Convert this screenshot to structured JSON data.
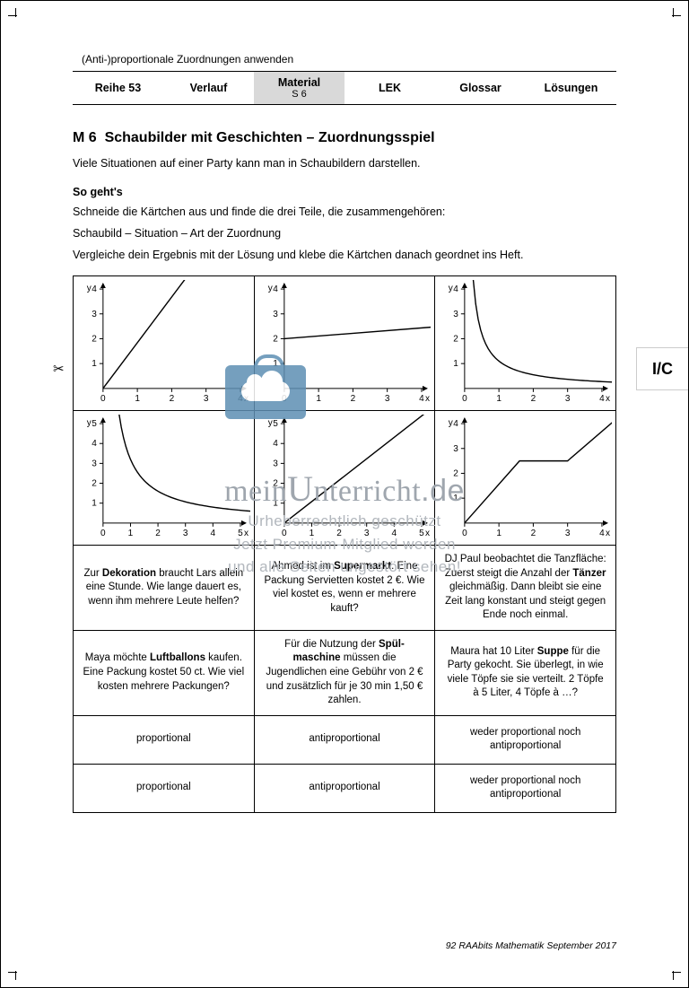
{
  "colors": {
    "page_bg": "#ffffff",
    "text": "#000000",
    "nav_active_bg": "#d9d9d9",
    "axis": "#000000",
    "curve": "#000000",
    "watermark": "#a9aeb4",
    "briefcase": "#5e8fb3"
  },
  "fonts": {
    "body_family": "Arial",
    "body_size_pt": 9,
    "h1_size_pt": 12,
    "nav_size_pt": 9,
    "footer_size_pt": 8
  },
  "header": {
    "small": "(Anti-)proportionale Zuordnungen anwenden"
  },
  "nav": {
    "items": [
      {
        "main": "Reihe 53",
        "sub": "",
        "active": false
      },
      {
        "main": "Verlauf",
        "sub": "",
        "active": false
      },
      {
        "main": "Material",
        "sub": "S 6",
        "active": true
      },
      {
        "main": "LEK",
        "sub": "",
        "active": false
      },
      {
        "main": "Glossar",
        "sub": "",
        "active": false
      },
      {
        "main": "Lösungen",
        "sub": "",
        "active": false
      }
    ]
  },
  "title": {
    "prefix": "M 6",
    "text": "Schaubilder mit Geschichten – Zuordnungsspiel"
  },
  "intro": "Viele Situationen auf einer Party kann man in Schaubildern darstellen.",
  "howto_label": "So geht's",
  "howto_lines": [
    "Schneide die Kärtchen aus und finde die drei Teile, die zusammengehören:",
    "Schaubild – Situation – Art der Zuordnung",
    "Vergleiche dein Ergebnis mit der Lösung und klebe die Kärtchen danach geordnet ins Heft."
  ],
  "thumb_tab": "I/C",
  "scissors": "✂",
  "charts": {
    "axis_style": {
      "stroke": "#000000",
      "stroke_width": 1,
      "arrow": true
    },
    "label_font_size": 10,
    "list": [
      {
        "id": "c1",
        "type": "line",
        "xlim": [
          0,
          4
        ],
        "ylim": [
          0,
          4
        ],
        "xticks": [
          0,
          1,
          2,
          3,
          4
        ],
        "yticks": [
          1,
          2,
          3,
          4
        ],
        "xlabel": "x",
        "ylabel": "y",
        "curves": [
          {
            "kind": "polyline",
            "points": [
              [
                0,
                0
              ],
              [
                2.5,
                4.6
              ]
            ]
          }
        ]
      },
      {
        "id": "c2",
        "type": "line",
        "xlim": [
          0,
          4
        ],
        "ylim": [
          0,
          4
        ],
        "xticks": [
          0,
          1,
          2,
          3,
          4
        ],
        "yticks": [
          1,
          2,
          3,
          4
        ],
        "xlabel": "x",
        "ylabel": "y",
        "curves": [
          {
            "kind": "polyline",
            "points": [
              [
                0,
                2
              ],
              [
                4.6,
                2.5
              ]
            ]
          }
        ]
      },
      {
        "id": "c3",
        "type": "curve",
        "xlim": [
          0,
          4
        ],
        "ylim": [
          0,
          4
        ],
        "xticks": [
          0,
          1,
          2,
          3,
          4
        ],
        "yticks": [
          1,
          2,
          3,
          4
        ],
        "xlabel": "x",
        "ylabel": "y",
        "curves": [
          {
            "kind": "hyperbola",
            "a": 1.1,
            "x_from": 0.25,
            "x_to": 4.6
          }
        ]
      },
      {
        "id": "c4",
        "type": "curve",
        "xlim": [
          0,
          5
        ],
        "ylim": [
          0,
          5
        ],
        "xticks": [
          0,
          1,
          2,
          3,
          4,
          5
        ],
        "yticks": [
          1,
          2,
          3,
          4,
          5
        ],
        "xlabel": "x",
        "ylabel": "y",
        "curves": [
          {
            "kind": "hyperbola",
            "a": 3.2,
            "x_from": 0.58,
            "x_to": 5.6
          }
        ]
      },
      {
        "id": "c5",
        "type": "line",
        "xlim": [
          0,
          5
        ],
        "ylim": [
          0,
          5
        ],
        "xticks": [
          0,
          1,
          2,
          3,
          4,
          5
        ],
        "yticks": [
          1,
          2,
          3,
          4,
          5
        ],
        "xlabel": "x",
        "ylabel": "y",
        "curves": [
          {
            "kind": "polyline",
            "points": [
              [
                0,
                0
              ],
              [
                5.2,
                5.6
              ]
            ]
          }
        ]
      },
      {
        "id": "c6",
        "type": "piecewise",
        "xlim": [
          0,
          4
        ],
        "ylim": [
          0,
          4
        ],
        "xticks": [
          0,
          1,
          2,
          3,
          4
        ],
        "yticks": [
          1,
          2,
          3,
          4
        ],
        "xlabel": "x",
        "ylabel": "y",
        "curves": [
          {
            "kind": "polyline",
            "points": [
              [
                0,
                0
              ],
              [
                1.6,
                2.5
              ],
              [
                3.0,
                2.5
              ],
              [
                4.6,
                4.4
              ]
            ]
          }
        ]
      }
    ]
  },
  "text_cards": {
    "row1": [
      "Zur <b>Dekoration</b> braucht Lars allein eine Stunde. Wie lange dauert es, wenn ihm mehrere Leute helfen?",
      "Ahmed ist im <b>Supermarkt</b>. Eine Packung Servietten kostet 2 €. Wie viel kostet es, wenn er mehrere kauft?",
      "DJ Paul beobachtet die Tanzfläche: Zuerst steigt die Anzahl der <b>Tänzer</b> gleichmäßig. Dann bleibt sie eine Zeit lang konstant und steigt gegen Ende noch einmal."
    ],
    "row2": [
      "Maya möchte <b>Luft­ballons</b> kaufen. Eine Packung kostet 50 ct. Wie viel kosten mehrere Packungen?",
      "Für die Nutzung der <b>Spül­maschine</b> müssen die Jugendlichen eine Gebühr von 2 € und zusätzlich für je 30 min 1,50 € zahlen.",
      "Maura hat 10 Liter <b>Suppe</b> für die Party gekocht. Sie überlegt, in wie viele Töpfe sie sie verteilt. 2 Töpfe à 5 Liter, 4 Töpfe à …?"
    ],
    "row3": [
      "proportional",
      "antiproportional",
      "weder proportional noch antiproportional"
    ],
    "row4": [
      "proportional",
      "antiproportional",
      "weder proportional noch antiproportional"
    ]
  },
  "footer": "92 RAAbits Mathematik September 2017",
  "watermark": {
    "logo": "meinUnterricht.de",
    "line1": "Urheberrechtlich geschützt",
    "line2": "Jetzt Premium-Mitglied werden",
    "line3": "und alle Seiten ungestört sehen!"
  }
}
